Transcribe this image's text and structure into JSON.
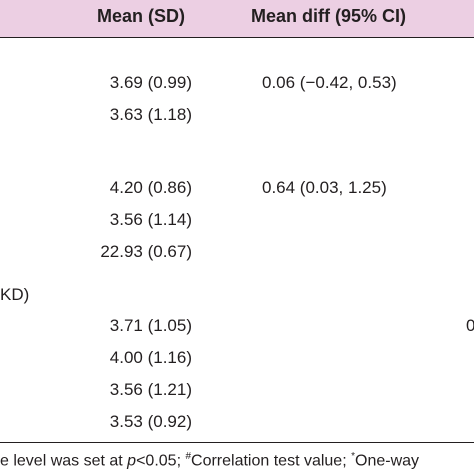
{
  "table": {
    "headers": {
      "mean_sd": "Mean (SD)",
      "mean_diff": "Mean diff (95% CI)"
    },
    "rows": [
      {
        "mean_sd": "3.69 (0.99)",
        "mean_diff": "0.06 (−0.42, 0.53)"
      },
      {
        "mean_sd": "3.63 (1.18)"
      },
      {
        "mean_sd": "4.20 (0.86)",
        "mean_diff": "0.64 (0.03, 1.25)"
      },
      {
        "mean_sd": "3.56 (1.14)"
      },
      {
        "mean_sd": "22.93 (0.67)"
      },
      {
        "mean_sd": "3.71 (1.05)"
      },
      {
        "mean_sd": "4.00 (1.16)"
      },
      {
        "mean_sd": "3.56 (1.21)"
      },
      {
        "mean_sd": "3.53 (0.92)"
      }
    ],
    "section_label_fragment": "KD)",
    "edge_fragment": "0"
  },
  "footnote": {
    "part1": "e level was set at ",
    "p_symbol": "p",
    "part2": "<0.05; ",
    "hash_mark": "#",
    "part3": "Correlation test value; ",
    "star_mark": "*",
    "part4": "One-way"
  }
}
